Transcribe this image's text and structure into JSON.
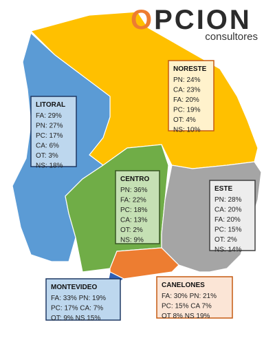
{
  "logo": {
    "name": "OPCION",
    "tagline": "consultores"
  },
  "regions": [
    {
      "name": "LITORAL",
      "lines": [
        "FA: 29%",
        "PN: 27%",
        "PC: 17%",
        "CA: 6%",
        "OT: 3%",
        "NS: 18%"
      ]
    },
    {
      "name": "NORESTE",
      "lines": [
        "PN: 24%",
        "CA: 23%",
        "FA: 20%",
        "PC: 19%",
        "OT: 4%",
        "NS: 10%"
      ]
    },
    {
      "name": "CENTRO",
      "lines": [
        "PN: 36%",
        "FA: 22%",
        "PC: 18%",
        "CA: 13%",
        "OT: 2%",
        "NS: 9%"
      ]
    },
    {
      "name": "ESTE",
      "lines": [
        "PN: 28%",
        "CA: 20%",
        "FA: 20%",
        "PC: 15%",
        "OT: 2%",
        "NS: 14%"
      ]
    },
    {
      "name": "MONTEVIDEO",
      "lines": [
        "FA: 33% PN: 19%",
        "PC: 17%  CA: 7%",
        "OT: 9%  NS 15%"
      ]
    },
    {
      "name": "CANELONES",
      "lines": [
        "FA: 30%  PN: 21%",
        "PC: 15%  CA 7%",
        "OT 8%   NS 19%"
      ]
    }
  ]
}
